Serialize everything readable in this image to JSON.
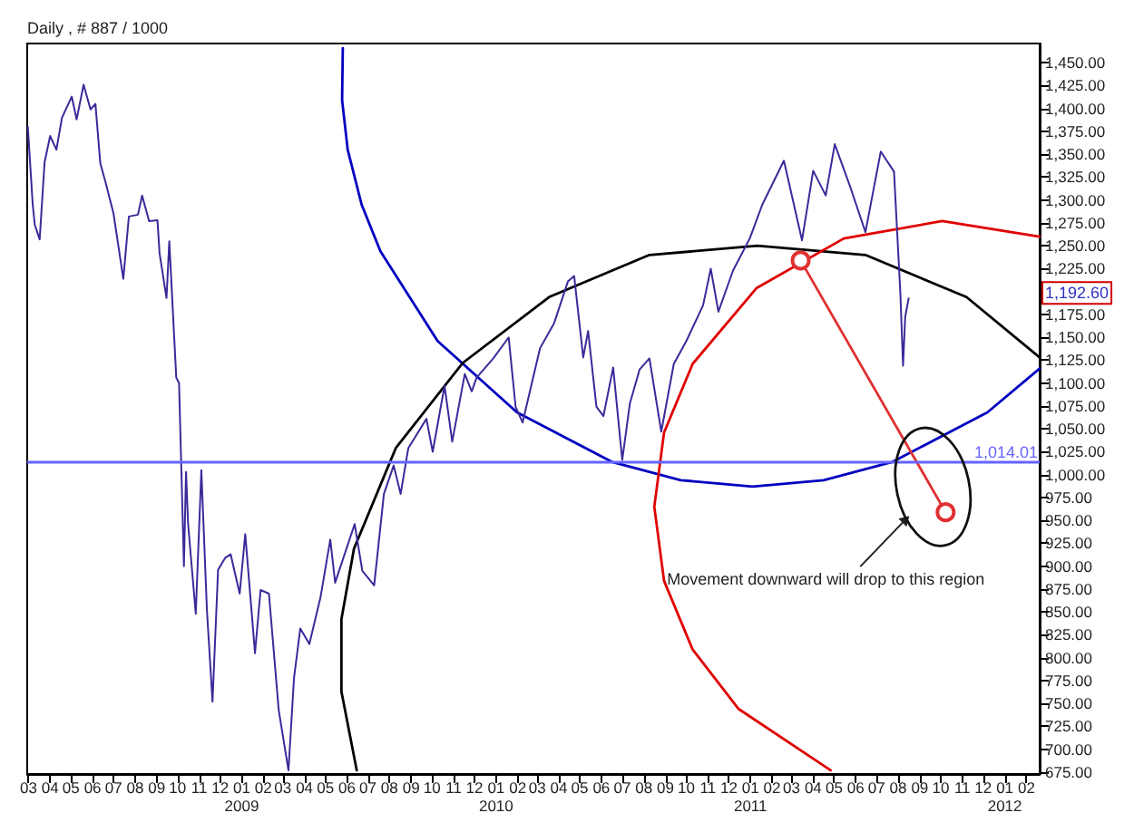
{
  "chart_data": {
    "type": "line",
    "title": "Daily , # 887 / 1000",
    "marker": "none",
    "grid": false,
    "xlim": [
      "2008-02-28",
      "2012-02-20"
    ],
    "xticks": [
      {
        "value": "2008-03-01",
        "label": "03"
      },
      {
        "value": "2008-04-01",
        "label": "04"
      },
      {
        "value": "2008-05-01",
        "label": "05"
      },
      {
        "value": "2008-06-01",
        "label": "06"
      },
      {
        "value": "2008-07-01",
        "label": "07"
      },
      {
        "value": "2008-08-01",
        "label": "08"
      },
      {
        "value": "2008-09-01",
        "label": "09"
      },
      {
        "value": "2008-10-01",
        "label": "10"
      },
      {
        "value": "2008-11-01",
        "label": "11"
      },
      {
        "value": "2008-12-01",
        "label": "12"
      },
      {
        "value": "2009-01-01",
        "label": "01"
      },
      {
        "value": "2009-02-01",
        "label": "02"
      },
      {
        "value": "2009-03-01",
        "label": "03"
      },
      {
        "value": "2009-04-01",
        "label": "04"
      },
      {
        "value": "2009-05-01",
        "label": "05"
      },
      {
        "value": "2009-06-01",
        "label": "06"
      },
      {
        "value": "2009-07-01",
        "label": "07"
      },
      {
        "value": "2009-08-01",
        "label": "08"
      },
      {
        "value": "2009-09-01",
        "label": "09"
      },
      {
        "value": "2009-10-01",
        "label": "10"
      },
      {
        "value": "2009-11-01",
        "label": "11"
      },
      {
        "value": "2009-12-01",
        "label": "12"
      },
      {
        "value": "2010-01-01",
        "label": "01"
      },
      {
        "value": "2010-02-01",
        "label": "02"
      },
      {
        "value": "2010-03-01",
        "label": "03"
      },
      {
        "value": "2010-04-01",
        "label": "04"
      },
      {
        "value": "2010-05-01",
        "label": "05"
      },
      {
        "value": "2010-06-01",
        "label": "06"
      },
      {
        "value": "2010-07-01",
        "label": "07"
      },
      {
        "value": "2010-08-01",
        "label": "08"
      },
      {
        "value": "2010-09-01",
        "label": "09"
      },
      {
        "value": "2010-10-01",
        "label": "10"
      },
      {
        "value": "2010-11-01",
        "label": "11"
      },
      {
        "value": "2010-12-01",
        "label": "12"
      },
      {
        "value": "2011-01-01",
        "label": "01"
      },
      {
        "value": "2011-02-01",
        "label": "02"
      },
      {
        "value": "2011-03-01",
        "label": "03"
      },
      {
        "value": "2011-04-01",
        "label": "04"
      },
      {
        "value": "2011-05-01",
        "label": "05"
      },
      {
        "value": "2011-06-01",
        "label": "06"
      },
      {
        "value": "2011-07-01",
        "label": "07"
      },
      {
        "value": "2011-08-01",
        "label": "08"
      },
      {
        "value": "2011-09-01",
        "label": "09"
      },
      {
        "value": "2011-10-01",
        "label": "10"
      },
      {
        "value": "2011-11-01",
        "label": "11"
      },
      {
        "value": "2011-12-01",
        "label": "12"
      },
      {
        "value": "2012-01-01",
        "label": "01"
      },
      {
        "value": "2012-02-01",
        "label": "02"
      }
    ],
    "x2lim": [
      "2008-02-28",
      "2012-02-20"
    ],
    "x2ticks": [
      {
        "value": "2009-01-01",
        "label": "2009"
      },
      {
        "value": "2010-01-01",
        "label": "2010"
      },
      {
        "value": "2011-01-01",
        "label": "2011"
      },
      {
        "value": "2012-01-01",
        "label": "2012"
      }
    ],
    "ylim": [
      673,
      1471
    ],
    "yticks": [
      {
        "value": 675,
        "label": "675.00"
      },
      {
        "value": 700,
        "label": "700.00"
      },
      {
        "value": 725,
        "label": "725.00"
      },
      {
        "value": 750,
        "label": "750.00"
      },
      {
        "value": 775,
        "label": "775.00"
      },
      {
        "value": 800,
        "label": "800.00"
      },
      {
        "value": 825,
        "label": "825.00"
      },
      {
        "value": 850,
        "label": "850.00"
      },
      {
        "value": 875,
        "label": "875.00"
      },
      {
        "value": 900,
        "label": "900.00"
      },
      {
        "value": 925,
        "label": "925.00"
      },
      {
        "value": 950,
        "label": "950.00"
      },
      {
        "value": 975,
        "label": "975.00"
      },
      {
        "value": 1000,
        "label": "1,000.00"
      },
      {
        "value": 1025,
        "label": "1,025.00"
      },
      {
        "value": 1050,
        "label": "1,050.00"
      },
      {
        "value": 1075,
        "label": "1,075.00"
      },
      {
        "value": 1100,
        "label": "1,100.00"
      },
      {
        "value": 1125,
        "label": "1,125.00"
      },
      {
        "value": 1150,
        "label": "1,150.00"
      },
      {
        "value": 1175,
        "label": "1,175.00"
      },
      {
        "value": 1200,
        "label": null
      },
      {
        "value": 1225,
        "label": "1,225.00"
      },
      {
        "value": 1250,
        "label": "1,250.00"
      },
      {
        "value": 1275,
        "label": "1,275.00"
      },
      {
        "value": 1300,
        "label": "1,300.00"
      },
      {
        "value": 1325,
        "label": "1,325.00"
      },
      {
        "value": 1350,
        "label": "1,350.00"
      },
      {
        "value": 1375,
        "label": "1,375.00"
      },
      {
        "value": 1400,
        "label": "1,400.00"
      },
      {
        "value": 1425,
        "label": "1,425.00"
      },
      {
        "value": 1450,
        "label": "1,450.00"
      }
    ],
    "ref_lines": [
      {
        "axis": "y",
        "value": 1014.01,
        "label": "1,014.01",
        "color": "#6464ff"
      }
    ],
    "annotations": [
      "1,192.60",
      "Movement downward will drop to this region"
    ],
    "series": [
      {
        "color": "#3a2a9a",
        "x": [
          "2008-02-29",
          "2008-03-07",
          "2008-03-10",
          "2008-03-17",
          "2008-03-24",
          "2008-04-01",
          "2008-04-10",
          "2008-04-18",
          "2008-05-02",
          "2008-05-09",
          "2008-05-19",
          "2008-05-29",
          "2008-06-05",
          "2008-06-12",
          "2008-06-20",
          "2008-07-01",
          "2008-07-15",
          "2008-07-23",
          "2008-08-05",
          "2008-08-11",
          "2008-08-21",
          "2008-09-02",
          "2008-09-05",
          "2008-09-15",
          "2008-09-19",
          "2008-09-29",
          "2008-10-03",
          "2008-10-10",
          "2008-10-13",
          "2008-10-16",
          "2008-10-27",
          "2008-11-04",
          "2008-11-12",
          "2008-11-20",
          "2008-11-28",
          "2008-12-08",
          "2008-12-16",
          "2008-12-29",
          "2009-01-06",
          "2009-01-20",
          "2009-01-28",
          "2009-02-09",
          "2009-02-23",
          "2009-03-09",
          "2009-03-17",
          "2009-03-26",
          "2009-04-08",
          "2009-04-24",
          "2009-05-08",
          "2009-05-15",
          "2009-06-12",
          "2009-06-23",
          "2009-07-10",
          "2009-07-24",
          "2009-08-07",
          "2009-08-17",
          "2009-08-28",
          "2009-09-23",
          "2009-10-02",
          "2009-10-19",
          "2009-10-30",
          "2009-11-17",
          "2009-11-27",
          "2009-12-04",
          "2009-12-28",
          "2010-01-19",
          "2010-01-29",
          "2010-02-08",
          "2010-03-05",
          "2010-03-25",
          "2010-04-14",
          "2010-04-23",
          "2010-05-06",
          "2010-05-13",
          "2010-05-25",
          "2010-06-04",
          "2010-06-18",
          "2010-07-01",
          "2010-07-12",
          "2010-07-26",
          "2010-08-09",
          "2010-08-26",
          "2010-09-13",
          "2010-10-01",
          "2010-10-25",
          "2010-11-05",
          "2010-11-16",
          "2010-12-07",
          "2010-12-31",
          "2011-01-18",
          "2011-02-18",
          "2011-03-16",
          "2011-04-01",
          "2011-04-19",
          "2011-05-02",
          "2011-05-23",
          "2011-06-15",
          "2011-07-07",
          "2011-07-26",
          "2011-08-04",
          "2011-08-08",
          "2011-08-11",
          "2011-08-16"
        ],
        "values": [
          1380,
          1295,
          1273,
          1257,
          1341,
          1370,
          1355,
          1390,
          1413,
          1388,
          1426,
          1399,
          1405,
          1340,
          1318,
          1285,
          1214,
          1282,
          1284,
          1305,
          1277,
          1278,
          1242,
          1193,
          1255,
          1106,
          1100,
          900,
          1003,
          946,
          848,
          1005,
          852,
          752,
          896,
          909,
          913,
          870,
          935,
          805,
          874,
          870,
          743,
          677,
          778,
          832,
          815,
          866,
          929,
          882,
          946,
          895,
          879,
          979,
          1010,
          979,
          1029,
          1061,
          1025,
          1097,
          1036,
          1110,
          1091,
          1106,
          1127,
          1150,
          1074,
          1057,
          1138,
          1165,
          1211,
          1217,
          1128,
          1157,
          1074,
          1064,
          1117,
          1016,
          1078,
          1115,
          1127,
          1047,
          1121,
          1146,
          1185,
          1225,
          1178,
          1223,
          1258,
          1295,
          1343,
          1256,
          1332,
          1305,
          1361,
          1317,
          1265,
          1353,
          1331,
          1200,
          1119,
          1172,
          1192.6
        ]
      },
      {
        "color": "#0000c0",
        "x": [
          "2009-05-26",
          "2009-05-25",
          "2009-06-02",
          "2009-06-22",
          "2009-07-19",
          "2009-10-09",
          "2010-01-31",
          "2010-06-16",
          "2010-09-23",
          "2011-01-04",
          "2011-04-16",
          "2011-07-24",
          "2011-12-07",
          "2012-02-20"
        ],
        "values": [
          1466,
          1409,
          1355,
          1295,
          1244,
          1146,
          1068,
          1014,
          994,
          987,
          994,
          1014,
          1068,
          1116
        ]
      },
      {
        "color": "#000000",
        "x": [
          "2009-06-15",
          "2009-05-24",
          "2009-05-24",
          "2009-06-11",
          "2009-08-10",
          "2009-11-14",
          "2010-03-18",
          "2010-08-09",
          "2011-01-11",
          "2011-06-15",
          "2011-11-07",
          "2012-02-20"
        ],
        "values": [
          677,
          763,
          842,
          919,
          1029,
          1122,
          1194,
          1240,
          1250,
          1240,
          1194,
          1128
        ]
      },
      {
        "color": "#e00000",
        "x": [
          "2012-02-20",
          "2011-10-03",
          "2011-05-15",
          "2011-01-10",
          "2010-10-10",
          "2010-08-30",
          "2010-08-16",
          "2010-08-30",
          "2010-10-10",
          "2010-12-15",
          "2011-04-26"
        ],
        "values": [
          1260,
          1277,
          1258,
          1204,
          1121,
          1046,
          965,
          884,
          809,
          744,
          677
        ]
      },
      {
        "color": "#e03030",
        "marker": "circle",
        "x": [
          "2011-03-14",
          "2011-10-08"
        ],
        "values": [
          1234,
          959
        ]
      }
    ]
  }
}
